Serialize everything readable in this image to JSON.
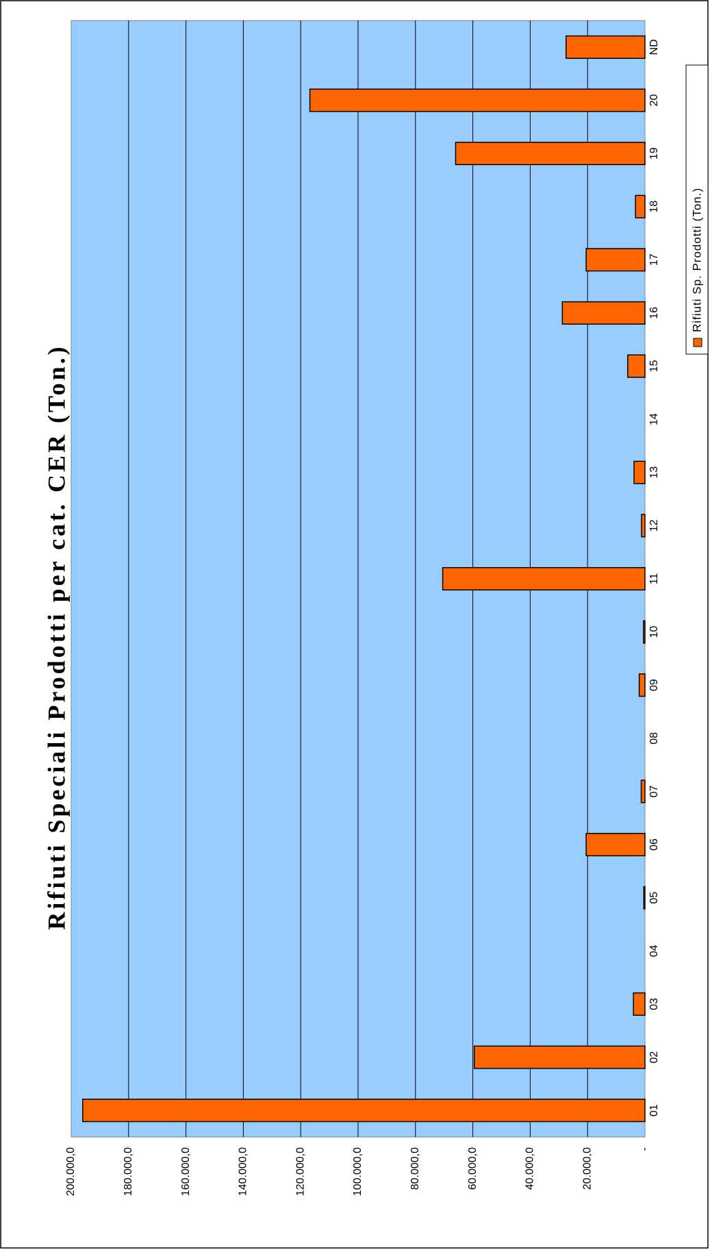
{
  "chart_data": {
    "type": "bar",
    "orientation": "rotated-90-ccw",
    "title": "Rifiuti Speciali Prodotti per cat. CER (Ton.)",
    "categories": [
      "01",
      "02",
      "03",
      "04",
      "05",
      "06",
      "07",
      "08",
      "09",
      "10",
      "11",
      "12",
      "13",
      "14",
      "15",
      "16",
      "17",
      "18",
      "19",
      "20",
      "ND"
    ],
    "series": [
      {
        "name": "Rifiuti Sp. Prodotti (Ton.)",
        "values": [
          196000,
          59500,
          4000,
          0,
          400,
          20500,
          1300,
          0,
          2000,
          500,
          70500,
          1200,
          3800,
          0,
          6000,
          28800,
          20500,
          3300,
          66000,
          116800,
          27500
        ]
      }
    ],
    "y_ticks": [
      "-",
      "20.000,0",
      "40.000,0",
      "60.000,0",
      "80.000,0",
      "100.000,0",
      "120.000,0",
      "140.000,0",
      "160.000,0",
      "180.000,0",
      "200.000,0"
    ],
    "ylim": [
      0,
      200000
    ],
    "grid": true,
    "legend_position": "right",
    "colors": {
      "plot_background": "#99ccff",
      "bar_fill": "#ff6600",
      "bar_stroke": "#000000",
      "gridline": "#000000"
    }
  }
}
